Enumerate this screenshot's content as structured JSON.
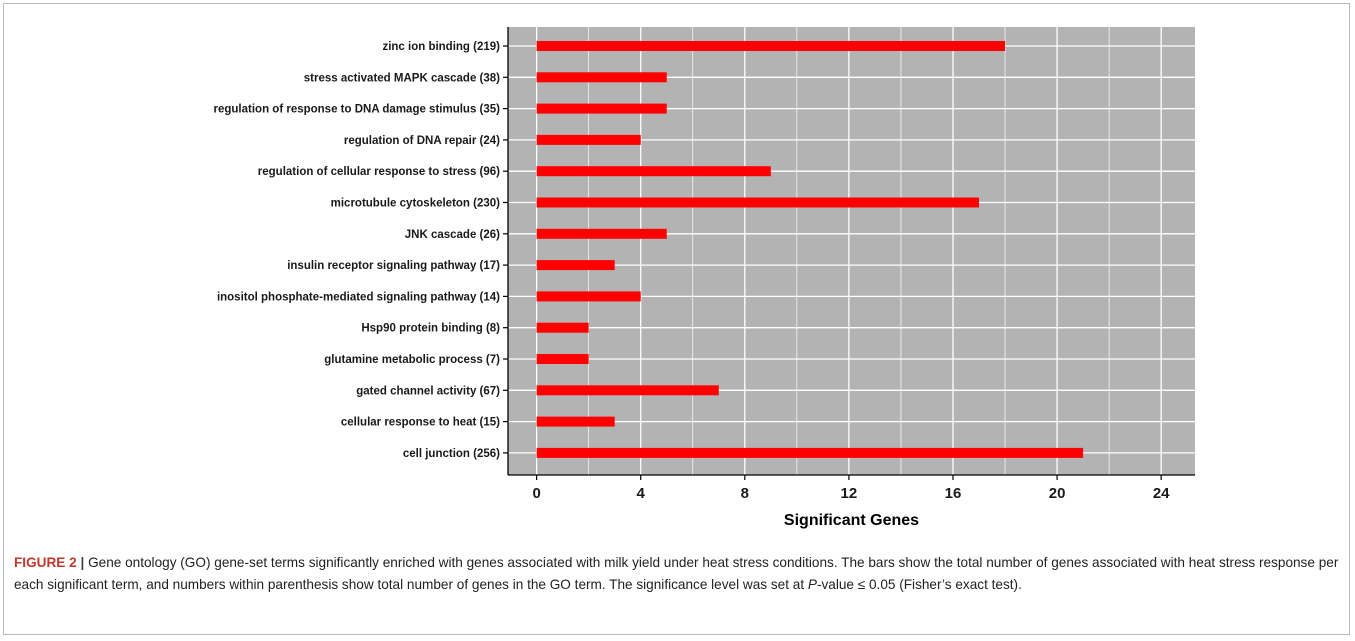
{
  "chart_data": {
    "type": "bar",
    "orientation": "horizontal",
    "categories": [
      "zinc ion binding (219)",
      "stress activated MAPK cascade (38)",
      "regulation of response to DNA damage stimulus (35)",
      "regulation of DNA repair (24)",
      "regulation of cellular response to stress (96)",
      "microtubule cytoskeleton (230)",
      "JNK cascade (26)",
      "insulin receptor signaling pathway (17)",
      "inositol phosphate-mediated signaling pathway (14)",
      "Hsp90 protein binding (8)",
      "glutamine metabolic process (7)",
      "gated channel activity (67)",
      "cellular response to heat (15)",
      "cell junction (256)"
    ],
    "values": [
      18,
      5,
      5,
      4,
      9,
      17,
      5,
      3,
      4,
      2,
      2,
      7,
      3,
      21
    ],
    "xlabel": "Significant Genes",
    "ylabel": "",
    "xlim": [
      -1.1,
      25.3
    ],
    "xticks": [
      0,
      4,
      8,
      12,
      16,
      20,
      24
    ],
    "grid": true,
    "colors": {
      "bar": "#ff0000",
      "panel_background": "#b3b3b3",
      "grid": "#ffffff"
    }
  },
  "caption": {
    "figure_label": "FIGURE 2",
    "separator": "|",
    "text_before_p": " Gene ontology (GO) gene-set terms significantly enriched with genes associated with milk yield under heat stress conditions. The bars show the total number of genes associated with heat stress response per each significant term, and numbers within parenthesis show total number of genes in the GO term. The significance level was set at ",
    "p_italic": "P",
    "text_after_p": "-value ≤ 0.05 (Fisher’s exact test)."
  }
}
